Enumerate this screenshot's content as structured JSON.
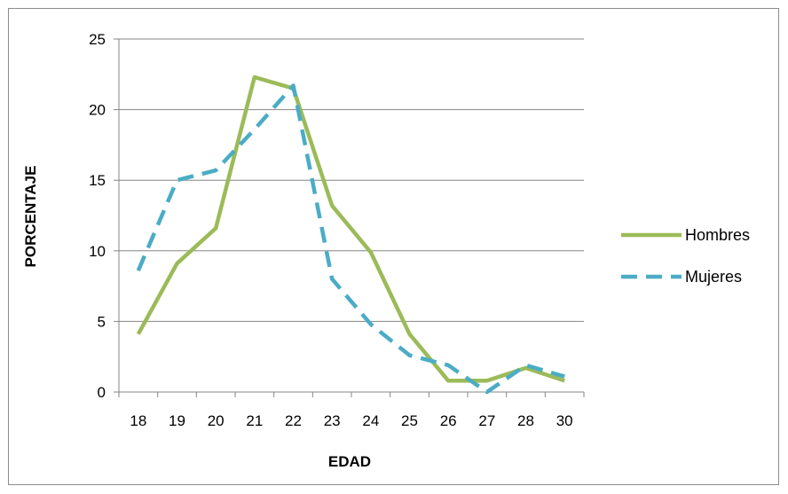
{
  "chart_data": {
    "type": "line",
    "title": "",
    "xlabel": "EDAD",
    "ylabel": "PORCENTAJE",
    "categories": [
      "18",
      "19",
      "20",
      "21",
      "22",
      "23",
      "24",
      "25",
      "26",
      "27",
      "28",
      "30"
    ],
    "ylim": [
      0,
      25
    ],
    "yticks": [
      "0",
      "5",
      "10",
      "15",
      "20",
      "25"
    ],
    "grid": true,
    "legend_position": "right",
    "series": [
      {
        "name": "Hombres",
        "color": "#9bbb59",
        "dash": "solid",
        "values": [
          4.1,
          9.1,
          11.6,
          22.3,
          21.5,
          13.2,
          9.9,
          4.1,
          0.8,
          0.8,
          1.7,
          0.8
        ]
      },
      {
        "name": "Mujeres",
        "color": "#4bacc6",
        "dash": "dashed",
        "values": [
          8.6,
          15.0,
          15.7,
          18.6,
          21.7,
          8.0,
          4.8,
          2.6,
          1.9,
          0.0,
          1.9,
          1.1
        ]
      }
    ]
  }
}
